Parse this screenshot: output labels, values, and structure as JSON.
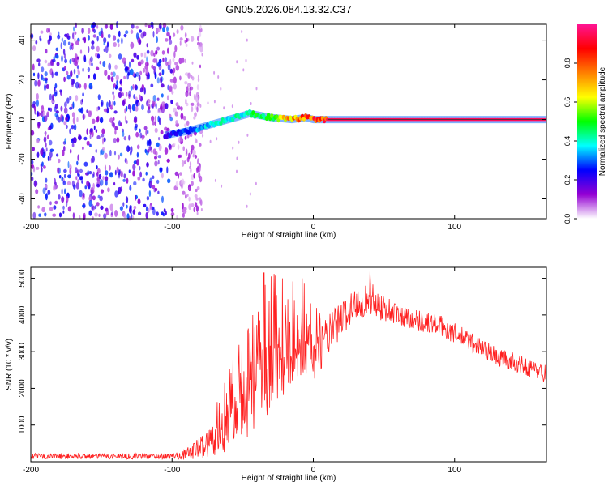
{
  "figure_title": "GN05.2026.084.13.32.C37",
  "chart_data": [
    {
      "type": "heatmap",
      "title": "GN05.2026.084.13.32.C37",
      "xlabel": "Height of straight line (km)",
      "ylabel": "Frequency (Hz)",
      "xlim": [
        -200,
        165
      ],
      "ylim": [
        -50,
        48
      ],
      "x_ticks": [
        -200,
        -100,
        0,
        100
      ],
      "y_ticks": [
        -40,
        -20,
        0,
        20,
        40
      ],
      "colorbar": {
        "label": "Normalized spectral amplitude",
        "range": [
          0,
          1
        ],
        "ticks": [
          0.0,
          0.2,
          0.4,
          0.6,
          0.8
        ],
        "tick_labels": [
          "0.0",
          "0.2",
          "0.4",
          "0.6",
          "0.8"
        ],
        "colors": [
          "#ffffff",
          "#9400d3",
          "#0000ff",
          "#00ffff",
          "#00ff00",
          "#ffff00",
          "#ff7f00",
          "#ff0000",
          "#ff1493"
        ]
      },
      "features": {
        "noise_region_x": [
          -200,
          -85
        ],
        "noise_levels": [
          0.05,
          0.3
        ],
        "carrier": {
          "x": [
            -105,
            -90,
            -75,
            -60,
            -50,
            -45,
            -30,
            -15,
            -5,
            0,
            10,
            165
          ],
          "freq": [
            -8,
            -6,
            -3,
            0,
            2,
            3,
            1,
            0,
            1,
            0,
            0,
            0
          ],
          "amplitude": [
            0.25,
            0.3,
            0.4,
            0.45,
            0.45,
            0.5,
            0.55,
            0.8,
            0.85,
            0.9,
            0.95,
            1.0
          ]
        }
      }
    },
    {
      "type": "line",
      "xlabel": "Height of straight line (km)",
      "ylabel": "SNR (10 * v/v)",
      "xlim": [
        -200,
        165
      ],
      "ylim": [
        0,
        5300
      ],
      "x_ticks": [
        -200,
        -100,
        0,
        100
      ],
      "y_ticks": [
        1000,
        2000,
        3000,
        4000,
        5000
      ],
      "series": [
        {
          "name": "SNR",
          "color": "#ff2020",
          "envelope_x": [
            -200,
            -100,
            -90,
            -75,
            -60,
            -50,
            -45,
            -30,
            -15,
            0,
            10,
            20,
            30,
            40,
            50,
            60,
            70,
            80,
            90,
            100,
            110,
            120,
            130,
            140,
            150,
            165
          ],
          "envelope_mean": [
            150,
            150,
            200,
            500,
            1000,
            1500,
            1800,
            2500,
            2900,
            3000,
            3400,
            3900,
            4300,
            4450,
            4200,
            4000,
            3900,
            3800,
            3700,
            3500,
            3300,
            3100,
            2850,
            2750,
            2600,
            2400
          ],
          "envelope_spread": [
            80,
            80,
            150,
            400,
            700,
            900,
            1100,
            1200,
            1000,
            800,
            600,
            500,
            450,
            450,
            400,
            300,
            300,
            300,
            300,
            280,
            280,
            260,
            260,
            250,
            250,
            250
          ],
          "peaks": [
            {
              "x": -57,
              "y": 2800
            },
            {
              "x": -35,
              "y": 5150
            },
            {
              "x": -30,
              "y": 5050
            },
            {
              "x": -22,
              "y": 5000
            },
            {
              "x": -8,
              "y": 5000
            },
            {
              "x": 40,
              "y": 5200
            }
          ]
        }
      ]
    }
  ]
}
